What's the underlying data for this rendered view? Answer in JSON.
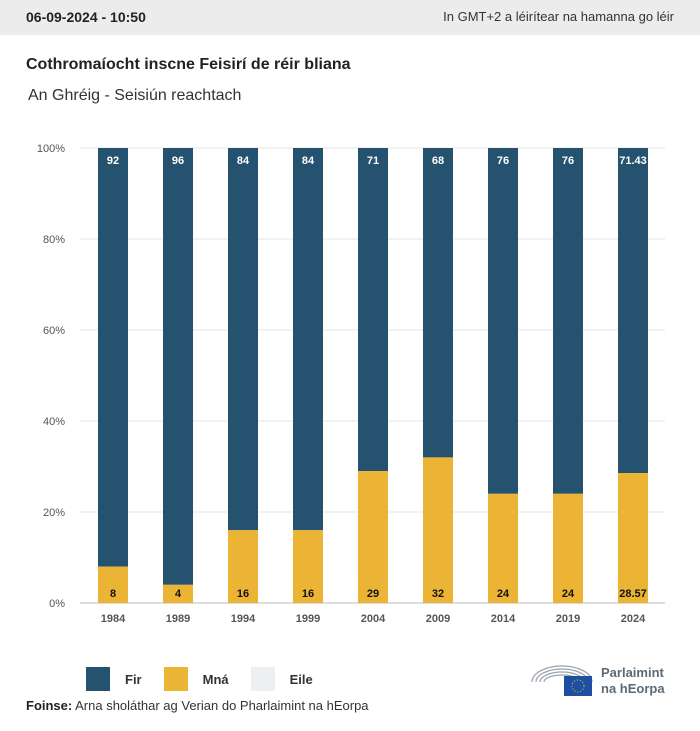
{
  "header": {
    "date": "06-09-2024 - 10:50",
    "timezone_note": "In GMT+2 a léirítear na hamanna go léir"
  },
  "title": "Cothromaíocht inscne Feisirí de réir bliana",
  "subtitle": "An Ghréig - Seisiún reachtach",
  "colors": {
    "Fir": "#25526f",
    "Mná": "#ebb434",
    "Eile": "#eeeff1"
  },
  "chart_data": {
    "type": "bar",
    "stacked": true,
    "categories": [
      "1984",
      "1989",
      "1994",
      "1999",
      "2004",
      "2009",
      "2014",
      "2019",
      "2024"
    ],
    "series": [
      {
        "name": "Mná",
        "values": [
          8,
          4,
          16,
          16,
          29,
          32,
          24,
          24,
          28.57
        ]
      },
      {
        "name": "Fir",
        "values": [
          92,
          96,
          84,
          84,
          71,
          68,
          76,
          76,
          71.43
        ]
      },
      {
        "name": "Eile",
        "values": [
          0,
          0,
          0,
          0,
          0,
          0,
          0,
          0,
          0
        ]
      }
    ],
    "y_ticks": [
      "0%",
      "20%",
      "40%",
      "60%",
      "80%",
      "100%"
    ],
    "ylim": [
      0,
      100
    ],
    "grid": true,
    "legend": "bottom-left"
  },
  "legend": [
    "Fir",
    "Mná",
    "Eile"
  ],
  "source": {
    "label": "Foinse:",
    "text": " Arna sholáthar ag Verian do Pharlaimint na hEorpa"
  },
  "logo": {
    "line1": "Parlaimint",
    "line2": "na hEorpa"
  }
}
